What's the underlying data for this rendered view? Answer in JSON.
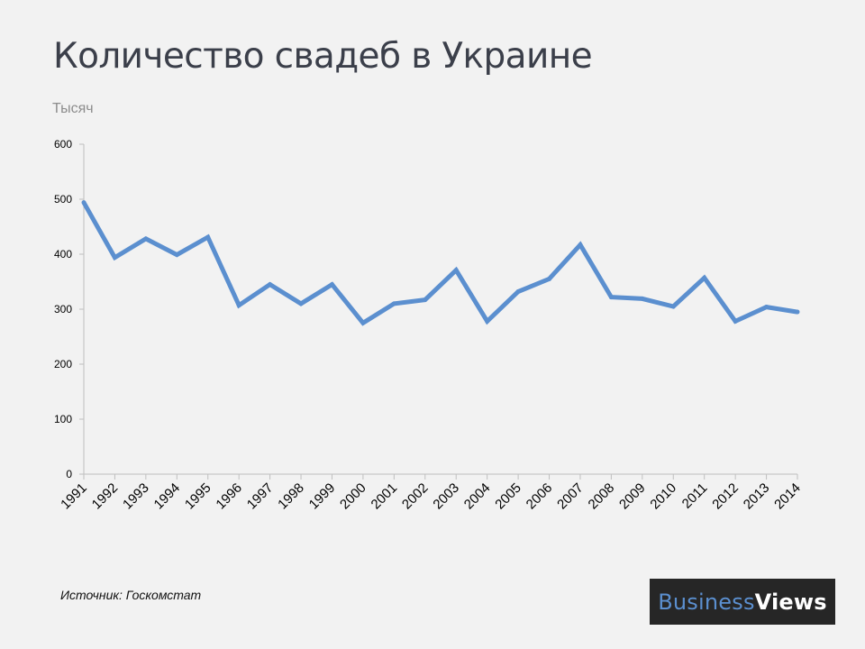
{
  "page": {
    "title": "Количество свадеб в Украине",
    "unit_label": "Тысяч",
    "source": "Источник: Госкомстат",
    "logo": {
      "text_part1": "Business",
      "text_part2": "Views",
      "color_part1": "#5b8fcf",
      "color_part2": "#ffffff",
      "background": "#262626"
    }
  },
  "chart_data": {
    "type": "line",
    "title": "Количество свадеб в Украине",
    "xlabel": "",
    "ylabel": "Тысяч",
    "x": [
      "1991",
      "1992",
      "1993",
      "1994",
      "1995",
      "1996",
      "1997",
      "1998",
      "1999",
      "2000",
      "2001",
      "2002",
      "2003",
      "2004",
      "2005",
      "2006",
      "2007",
      "2008",
      "2009",
      "2010",
      "2011",
      "2012",
      "2013",
      "2014"
    ],
    "series": [
      {
        "values": [
          494,
          394,
          428,
          399,
          431,
          307,
          345,
          310,
          345,
          275,
          310,
          317,
          371,
          278,
          332,
          355,
          417,
          322,
          319,
          305,
          357,
          278,
          304,
          295
        ],
        "color": "#5b8fcf"
      }
    ],
    "ylim": [
      0,
      600
    ],
    "yticks": [
      "0",
      "100",
      "200",
      "300",
      "400",
      "500",
      "600"
    ],
    "grid": false,
    "legend": "none"
  }
}
